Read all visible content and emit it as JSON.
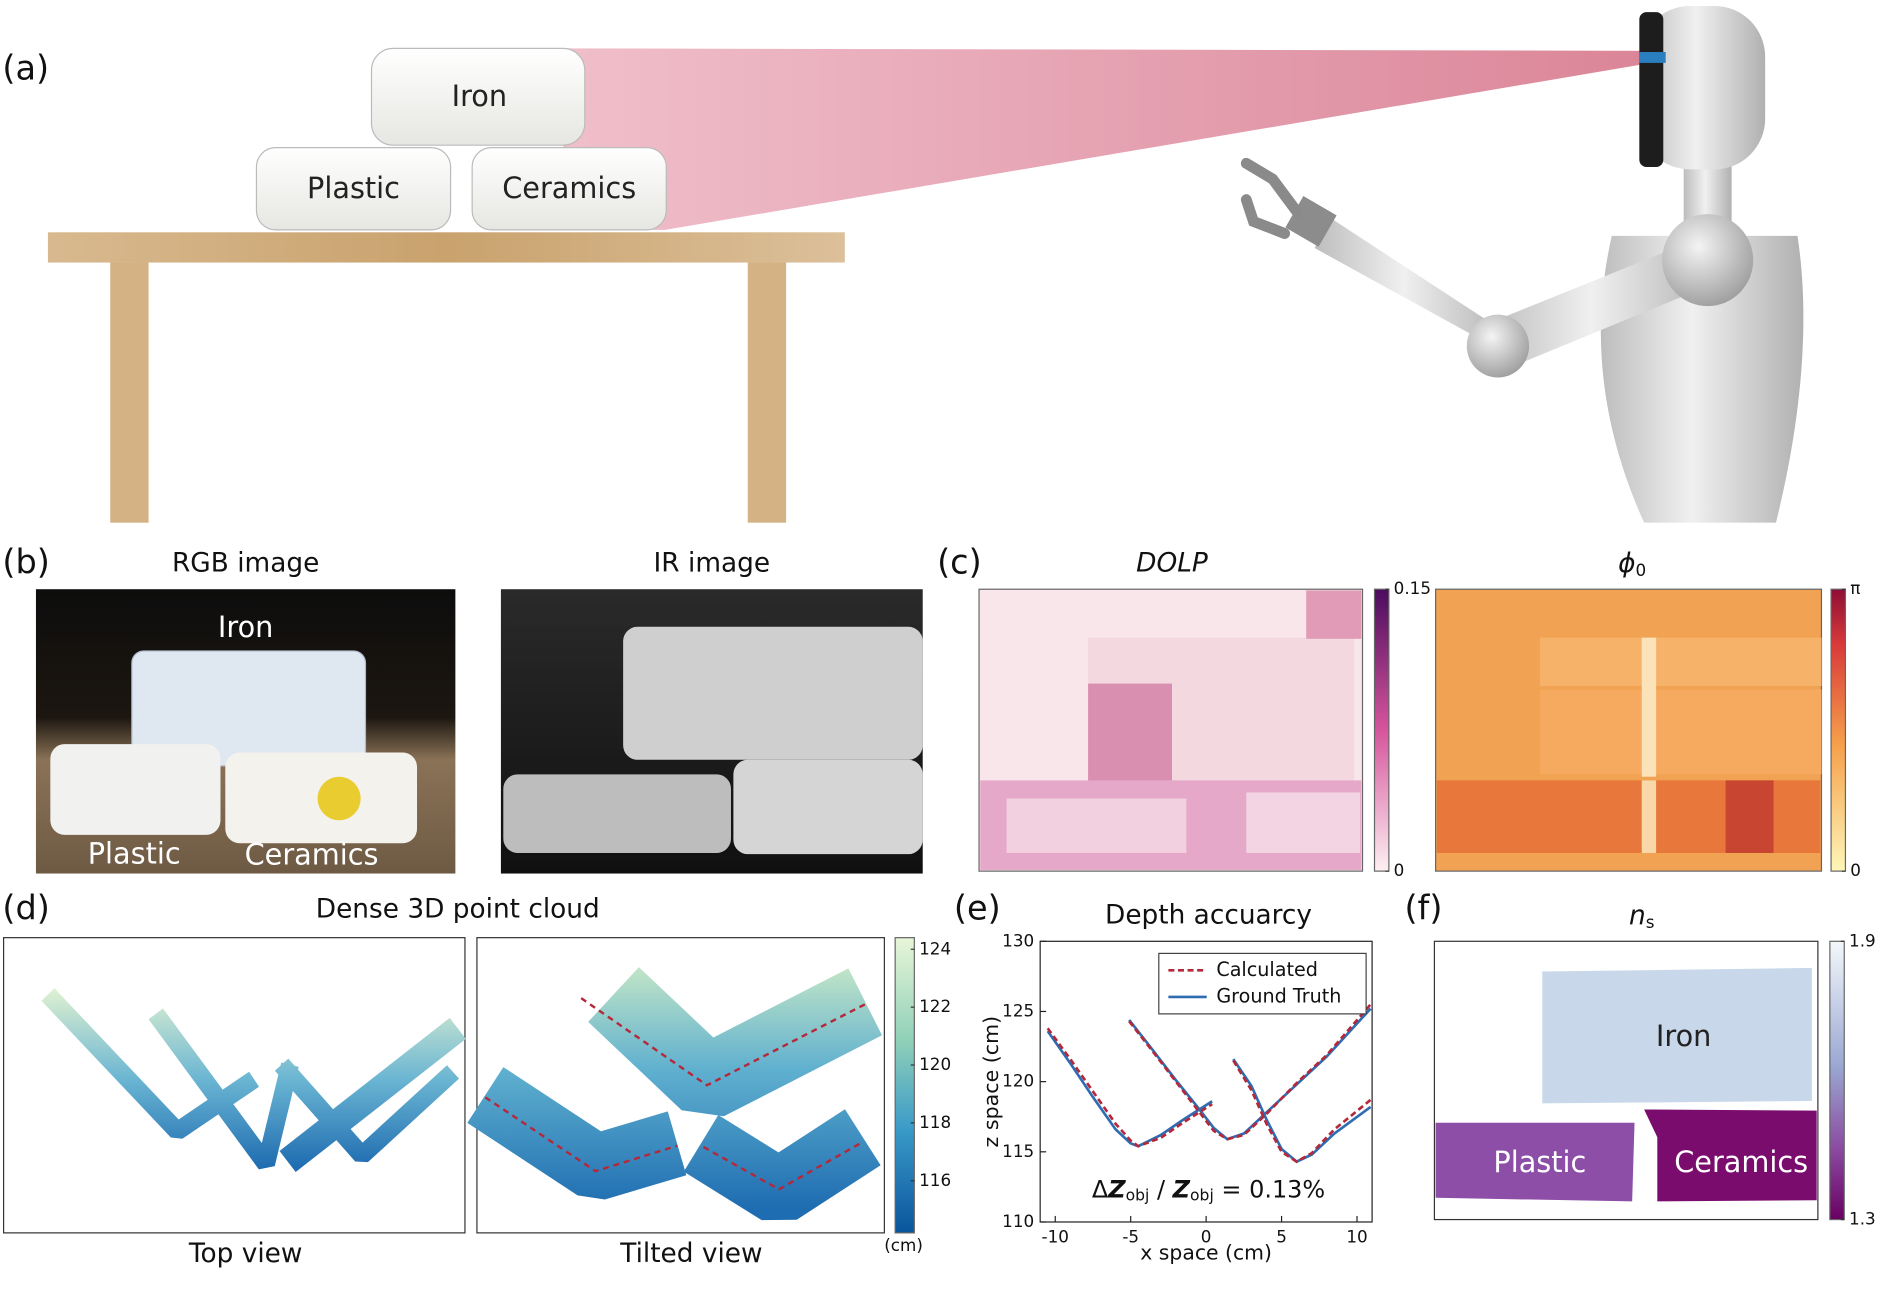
{
  "panel_labels": [
    "(a)",
    "(b)",
    "(c)",
    "(d)",
    "(e)",
    "(f)"
  ],
  "scene": {
    "objects": [
      "Iron",
      "Plastic",
      "Ceramics"
    ]
  },
  "images": {
    "rgb_title": "RGB image",
    "ir_title": "IR image",
    "rgb_labels": [
      "Iron",
      "Plastic",
      "Ceramics"
    ]
  },
  "polarization": {
    "dolp": {
      "title": "DOLP",
      "colorbar": {
        "lim": [
          0,
          0.15
        ],
        "ticks": [
          0.15,
          0
        ]
      }
    },
    "phi": {
      "title": "ϕ",
      "title_sub": "0",
      "colorbar": {
        "lim": [
          0,
          3.14159
        ],
        "ticks": [
          {
            "value": 3.14159,
            "label": "π"
          },
          0
        ]
      }
    }
  },
  "point_cloud": {
    "title": "Dense 3D point cloud",
    "views": [
      "Top view",
      "Tilted view"
    ],
    "colorbar": {
      "lim": [
        114.2,
        124.4
      ],
      "ticks": [
        124,
        122,
        120,
        118,
        116
      ],
      "unit": "(cm)"
    }
  },
  "chart_data": {
    "type": "line",
    "title": "Depth accuarcy",
    "x_label": "x space (cm)",
    "y_label": "z space (cm)",
    "x": [
      -10.5,
      -9,
      -7.5,
      -6,
      -5,
      -4.5,
      -3,
      -1.5,
      0.4,
      null,
      -5.1,
      -3.5,
      -2,
      -0.5,
      0.5,
      1.4,
      2.5,
      4,
      6,
      8,
      10.9,
      null,
      1.8,
      3,
      4,
      5,
      6,
      7,
      8.5,
      10.9
    ],
    "series": [
      {
        "name": "Calculated",
        "color": "#b5283a",
        "linestyle": "dashed",
        "values": [
          123.8,
          121.6,
          119.3,
          117.0,
          115.8,
          115.4,
          116.0,
          117.1,
          118.4,
          null,
          124.3,
          122.1,
          120.0,
          117.9,
          116.5,
          115.9,
          116.2,
          117.7,
          119.9,
          121.9,
          125.5,
          null,
          121.5,
          119.4,
          117.0,
          115.0,
          114.3,
          114.9,
          116.6,
          118.7
        ]
      },
      {
        "name": "Ground Truth",
        "color": "#2f6db3",
        "linestyle": "solid",
        "values": [
          123.6,
          121.3,
          118.9,
          116.6,
          115.6,
          115.4,
          116.2,
          117.3,
          118.6,
          null,
          124.4,
          122.2,
          120.1,
          118.1,
          116.7,
          115.9,
          116.3,
          117.8,
          119.8,
          121.8,
          125.2,
          null,
          121.6,
          119.7,
          117.3,
          115.2,
          114.3,
          114.8,
          116.3,
          118.2
        ]
      }
    ],
    "xlim": [
      -11,
      11
    ],
    "ylim": [
      110,
      130
    ],
    "xticks": [
      -10,
      -5,
      0,
      5,
      10
    ],
    "yticks": [
      110,
      115,
      120,
      125,
      130
    ],
    "legend": "upper right",
    "annotation": [
      "Δ",
      "Z",
      "obj",
      " / ",
      "Z",
      "obj",
      " = 0.13%"
    ]
  },
  "refractive_index": {
    "title": "n",
    "title_sub": "s",
    "regions": [
      "Iron",
      "Plastic",
      "Ceramics"
    ],
    "colorbar": {
      "lim": [
        1.3,
        1.9
      ],
      "ticks": [
        1.9,
        1.3
      ]
    }
  }
}
